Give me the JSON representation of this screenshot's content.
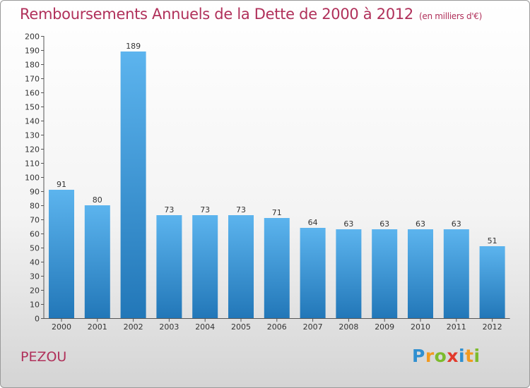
{
  "title": "Remboursements Annuels de la Dette de 2000 à 2012",
  "subtitle": "(en milliers d'€)",
  "commune": "PEZOU",
  "logo": {
    "text": "Proxiti",
    "letters": [
      {
        "ch": "P",
        "color": "#2f8fd0"
      },
      {
        "ch": "r",
        "color": "#f29a1f"
      },
      {
        "ch": "o",
        "color": "#7dbb2d"
      },
      {
        "ch": "x",
        "color": "#e23a2c"
      },
      {
        "ch": "i",
        "color": "#2f8fd0"
      },
      {
        "ch": "t",
        "color": "#f29a1f"
      },
      {
        "ch": "i",
        "color": "#7dbb2d"
      }
    ]
  },
  "colors": {
    "title": "#b0305a",
    "bar_light": "#5cb4ee",
    "bar_dark": "#2277b8"
  },
  "chart_data": {
    "type": "bar",
    "title": "Remboursements Annuels de la Dette de 2000 à 2012",
    "subtitle": "(en milliers d'€)",
    "xlabel": "",
    "ylabel": "",
    "categories": [
      "2000",
      "2001",
      "2002",
      "2003",
      "2004",
      "2005",
      "2006",
      "2007",
      "2008",
      "2009",
      "2010",
      "2011",
      "2012"
    ],
    "values": [
      91,
      80,
      189,
      73,
      73,
      73,
      71,
      64,
      63,
      63,
      63,
      63,
      51
    ],
    "ylim": [
      0,
      200
    ],
    "yticks": [
      0,
      10,
      20,
      30,
      40,
      50,
      60,
      70,
      80,
      90,
      100,
      110,
      120,
      130,
      140,
      150,
      160,
      170,
      180,
      190,
      200
    ],
    "grid": false,
    "legend": "none"
  }
}
